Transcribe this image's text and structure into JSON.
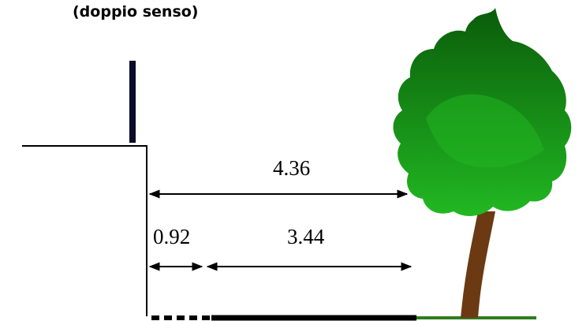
{
  "caption": "(doppio senso)",
  "dimensions": {
    "total": "4.36",
    "sidewalk": "0.92",
    "road": "3.44"
  },
  "colors": {
    "canopy_light": "#22b822",
    "canopy_dark": "#0a5c0a",
    "trunk": "#6b3a12",
    "grass": "#2f7d1f",
    "line": "#000000",
    "pole": "#0b0b2a"
  },
  "icons": [
    "tree-icon",
    "pole-icon"
  ]
}
